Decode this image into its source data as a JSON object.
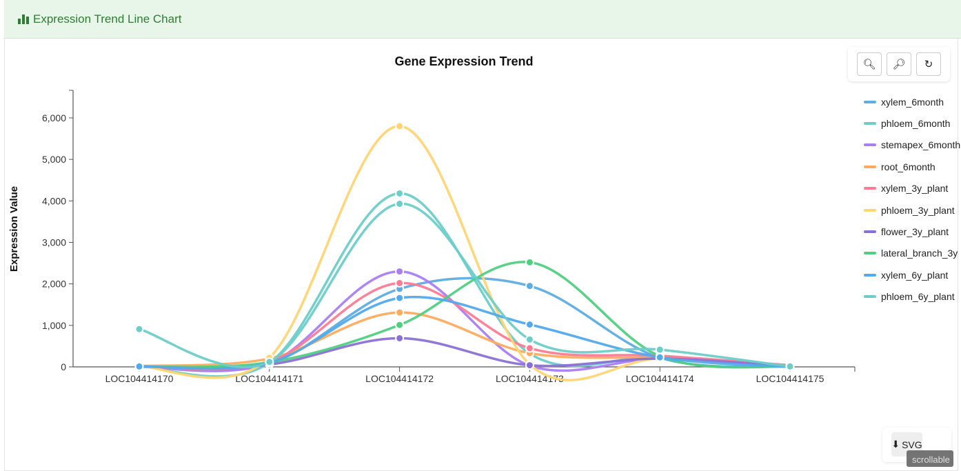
{
  "header": {
    "title": "Expression Trend Line Chart",
    "icon": "bar-chart-icon"
  },
  "toolbar": {
    "zoom_in": "zoom-in-icon",
    "zoom_out": "zoom-out-icon",
    "reset": "refresh-icon"
  },
  "export": {
    "label": "SVG",
    "icon": "download-icon",
    "overlay": "scrollable"
  },
  "chart_data": {
    "type": "line",
    "title": "Gene Expression Trend",
    "xlabel": "",
    "ylabel": "Expression Value",
    "ylim": [
      0,
      6600
    ],
    "yticks": [
      "0",
      "1,000",
      "2,000",
      "3,000",
      "4,000",
      "5,000",
      "6,000"
    ],
    "categories": [
      "LOC104414170",
      "LOC104414171",
      "LOC104414172",
      "LOC104414173",
      "LOC104414174",
      "LOC104414175"
    ],
    "legend_position": "right",
    "grid": false,
    "series": [
      {
        "name": "xylem_6month",
        "color": "#5dade2",
        "values": [
          10,
          80,
          1880,
          1950,
          220,
          5
        ]
      },
      {
        "name": "phloem_6month",
        "color": "#6dcdc8",
        "values": [
          10,
          100,
          4180,
          320,
          250,
          0
        ]
      },
      {
        "name": "stemapex_6month",
        "color": "#a97ef3",
        "values": [
          5,
          90,
          2300,
          30,
          200,
          0
        ]
      },
      {
        "name": "root_6month",
        "color": "#ffab5e",
        "values": [
          20,
          200,
          1310,
          330,
          210,
          30
        ]
      },
      {
        "name": "xylem_3y_plant",
        "color": "#ff7b93",
        "values": [
          10,
          120,
          2020,
          450,
          270,
          40
        ]
      },
      {
        "name": "phloem_3y_plant",
        "color": "#ffd572",
        "values": [
          10,
          220,
          5800,
          60,
          200,
          10
        ]
      },
      {
        "name": "flower_3y_plant",
        "color": "#8a70d6",
        "values": [
          5,
          60,
          690,
          40,
          200,
          10
        ]
      },
      {
        "name": "lateral_branch_3y",
        "color": "#4fd07f",
        "values": [
          0,
          110,
          1010,
          2520,
          260,
          0
        ]
      },
      {
        "name": "xylem_6y_plant",
        "color": "#52aaec",
        "values": [
          10,
          100,
          1660,
          1020,
          230,
          0
        ]
      },
      {
        "name": "phloem_6y_plant",
        "color": "#6ccdc9",
        "values": [
          910,
          120,
          3930,
          660,
          415,
          10
        ]
      }
    ]
  }
}
